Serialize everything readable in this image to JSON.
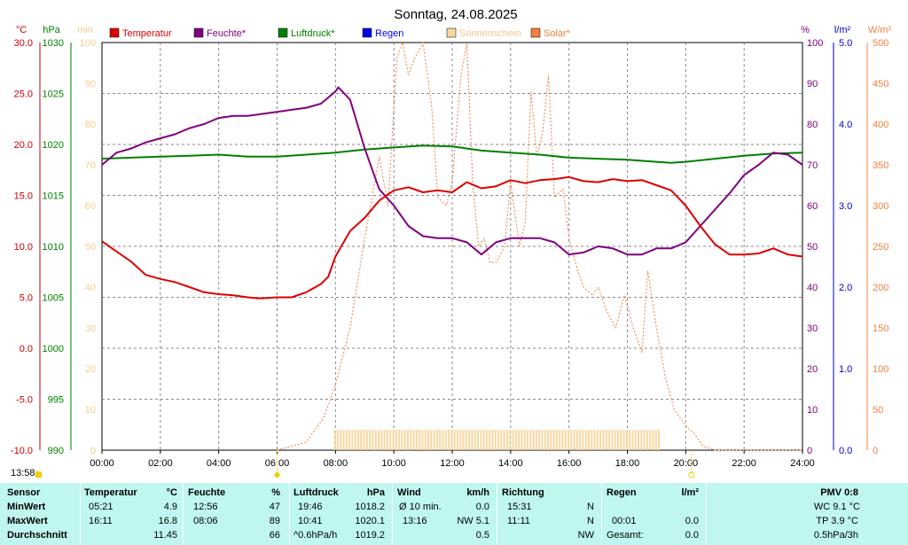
{
  "chart_data": {
    "type": "line",
    "title": "Sonntag, 24.08.2025",
    "x_ticks": [
      "00:00",
      "02:00",
      "04:00",
      "06:00",
      "08:00",
      "10:00",
      "12:00",
      "14:00",
      "16:00",
      "18:00",
      "20:00",
      "22:00",
      "24:00"
    ],
    "grid": true,
    "axes": {
      "temp": {
        "unit": "°C",
        "range": [
          -10,
          30
        ],
        "ticks": [
          "30.0",
          "25.0",
          "20.0",
          "15.0",
          "10.0",
          "5.0",
          "0.0",
          "-5.0",
          "-10.0"
        ],
        "color": "#cc0000"
      },
      "pressure": {
        "unit": "hPa",
        "range": [
          990,
          1030
        ],
        "ticks": [
          "1030",
          "1025",
          "1020",
          "1015",
          "1010",
          "1005",
          "1000",
          "995",
          "990"
        ],
        "color": "#008000"
      },
      "minutes": {
        "unit": "min",
        "range": [
          0,
          100
        ],
        "ticks": [
          "100",
          "90",
          "80",
          "70",
          "60",
          "50",
          "40",
          "30",
          "20",
          "10",
          "0"
        ],
        "color": "#f0d090"
      },
      "humidity": {
        "unit": "%",
        "range": [
          0,
          100
        ],
        "ticks": [
          "100",
          "90",
          "80",
          "70",
          "60",
          "50",
          "40",
          "30",
          "20",
          "10",
          "0"
        ],
        "color": "#800080"
      },
      "rain": {
        "unit": "l/m²",
        "range": [
          0,
          5
        ],
        "ticks": [
          "5.0",
          "4.0",
          "3.0",
          "2.0",
          "1.0",
          "0.0"
        ],
        "color": "#0000cc"
      },
      "solar": {
        "unit": "W/m²",
        "range": [
          0,
          500
        ],
        "ticks": [
          "500",
          "450",
          "400",
          "350",
          "300",
          "250",
          "200",
          "150",
          "100",
          "50",
          "0"
        ],
        "color": "#f08040"
      }
    },
    "legend": [
      {
        "name": "Temperatur",
        "color": "#dd0000"
      },
      {
        "name": "Feuchte*",
        "color": "#800080"
      },
      {
        "name": "Luftdruck*",
        "color": "#008000"
      },
      {
        "name": "Regen",
        "color": "#0000ee"
      },
      {
        "name": "Sonnenschein",
        "color": "#f8d8a0"
      },
      {
        "name": "Solar*",
        "color": "#f08040"
      }
    ],
    "series": [
      {
        "name": "Temperatur",
        "axis": "temp",
        "color": "#dd0000",
        "x": [
          0,
          0.5,
          1,
          1.5,
          2,
          2.5,
          3,
          3.5,
          4,
          4.5,
          5,
          5.35,
          5.5,
          6,
          6.5,
          7,
          7.5,
          7.75,
          8,
          8.5,
          9,
          9.5,
          10,
          10.5,
          11,
          11.5,
          12,
          12.5,
          13,
          13.5,
          14,
          14.5,
          15,
          15.5,
          16,
          16.5,
          17,
          17.5,
          18,
          18.5,
          19,
          19.5,
          20,
          20.5,
          21,
          21.5,
          22,
          22.5,
          23,
          23.5,
          24
        ],
        "y": [
          10.5,
          9.5,
          8.5,
          7.2,
          6.8,
          6.5,
          6.0,
          5.5,
          5.3,
          5.2,
          5.0,
          4.9,
          4.9,
          5.0,
          5.0,
          5.5,
          6.3,
          7.0,
          9.0,
          11.5,
          12.8,
          14.5,
          15.5,
          15.8,
          15.3,
          15.5,
          15.3,
          16.3,
          15.7,
          15.9,
          16.5,
          16.2,
          16.5,
          16.6,
          16.8,
          16.4,
          16.3,
          16.6,
          16.4,
          16.5,
          16.0,
          15.5,
          14.0,
          12.0,
          10.2,
          9.2,
          9.2,
          9.3,
          9.8,
          9.2,
          9.0
        ]
      },
      {
        "name": "Feuchte*",
        "axis": "humidity",
        "color": "#800080",
        "x": [
          0,
          0.5,
          1,
          1.5,
          2,
          2.5,
          3,
          3.5,
          4,
          4.5,
          5,
          5.5,
          6,
          6.5,
          7,
          7.5,
          8,
          8.1,
          8.5,
          9,
          9.5,
          10,
          10.5,
          11,
          11.5,
          12,
          12.5,
          13,
          13.5,
          14,
          14.5,
          15,
          15.5,
          16,
          16.5,
          17,
          17.5,
          18,
          18.5,
          19,
          19.5,
          20,
          20.5,
          21,
          21.5,
          22,
          22.5,
          23,
          23.5,
          24
        ],
        "y": [
          70,
          73,
          74,
          75.5,
          76.5,
          77.5,
          79,
          80,
          81.5,
          82,
          82,
          82.5,
          83,
          83.5,
          84,
          85,
          88,
          89,
          86,
          74,
          64,
          60,
          55,
          52.5,
          52,
          52,
          51,
          48,
          51,
          52,
          52,
          52,
          51,
          48,
          48.5,
          50,
          49.5,
          48,
          48,
          49.5,
          49.5,
          51,
          55,
          59,
          63,
          67.5,
          70,
          73,
          72.5,
          70
        ]
      },
      {
        "name": "Luftdruck*",
        "axis": "pressure",
        "color": "#008000",
        "x": [
          0,
          1,
          2,
          3,
          4,
          5,
          6,
          7,
          8,
          9,
          10,
          11,
          12,
          13,
          14,
          15,
          16,
          17,
          18,
          19,
          19.5,
          20,
          21,
          22,
          23,
          24
        ],
        "y": [
          1018.6,
          1018.7,
          1018.8,
          1018.9,
          1019.0,
          1018.8,
          1018.8,
          1019.0,
          1019.2,
          1019.5,
          1019.7,
          1019.9,
          1019.8,
          1019.4,
          1019.2,
          1019.0,
          1018.7,
          1018.6,
          1018.5,
          1018.3,
          1018.2,
          1018.3,
          1018.6,
          1018.9,
          1019.1,
          1019.2
        ]
      },
      {
        "name": "Solar*",
        "axis": "solar",
        "color": "#f08040",
        "x": [
          6,
          7,
          7.6,
          8,
          8.5,
          9,
          9.5,
          9.8,
          10,
          10.1,
          10.3,
          10.5,
          10.7,
          11,
          11.3,
          11.5,
          11.8,
          12,
          12.3,
          12.5,
          12.7,
          12.9,
          13.1,
          13.3,
          13.5,
          13.8,
          14,
          14.3,
          14.5,
          14.7,
          14.9,
          15.1,
          15.3,
          15.5,
          15.8,
          16,
          16.3,
          16.5,
          16.8,
          17,
          17.3,
          17.6,
          17.9,
          18.2,
          18.5,
          18.7,
          19,
          19.3,
          19.6,
          20,
          20.3,
          20.6,
          21,
          24
        ],
        "y": [
          0,
          10,
          40,
          80,
          150,
          260,
          360,
          300,
          420,
          480,
          500,
          460,
          480,
          500,
          420,
          310,
          300,
          330,
          460,
          500,
          330,
          250,
          260,
          230,
          230,
          250,
          330,
          250,
          280,
          440,
          360,
          390,
          460,
          310,
          320,
          260,
          220,
          200,
          190,
          200,
          170,
          150,
          190,
          150,
          120,
          220,
          150,
          90,
          50,
          30,
          20,
          5,
          0,
          0
        ]
      },
      {
        "name": "Sonnenschein",
        "axis": "minutes",
        "color": "#f8d8a0",
        "type": "bar",
        "x_start": 7.95,
        "x_end": 19.1,
        "y": 5
      }
    ]
  },
  "stats": {
    "updated_time": "13:58",
    "sensor_label": "Sensor",
    "temperature": {
      "header": "Temperatur",
      "unit": "°C",
      "min_time": "05:21",
      "min": "4.9",
      "max_time": "16:11",
      "max": "16.8",
      "avg": "11.45"
    },
    "humidity": {
      "header": "Feuchte",
      "unit": "%",
      "min_time": "12:56",
      "min": "47",
      "max_time": "08:06",
      "max": "89",
      "avg": "66"
    },
    "pressure": {
      "header": "Luftdruck",
      "unit": "hPa",
      "min_time": "19:46",
      "min": "1018.2",
      "max_time": "10:41",
      "max": "1020.1",
      "trend_label": "^0.6hPa/h",
      "avg": "1019.2"
    },
    "wind": {
      "header": "Wind",
      "unit": "km/h",
      "min_label": "Ø 10 min.",
      "min": "0.0",
      "max_time": "13:16",
      "max": "NW 5.1",
      "avg": "0.5"
    },
    "direction": {
      "header": "Richtung",
      "min_time": "15:31",
      "min": "N",
      "max_time": "11:11",
      "max": "N",
      "avg": "NW"
    },
    "rain": {
      "header": "Regen",
      "unit": "l/m²",
      "max_time": "00:01",
      "max": "0.0",
      "total_label": "Gesamt:",
      "total": "0.0"
    },
    "pmv": {
      "header": "PMV 0:8",
      "wc": "WC 9.1 °C",
      "tp": "TP 3.9 °C",
      "trend": "0.5hPa/3h"
    },
    "rows": [
      "MinWert",
      "MaxWert",
      "Durchschnitt"
    ]
  }
}
